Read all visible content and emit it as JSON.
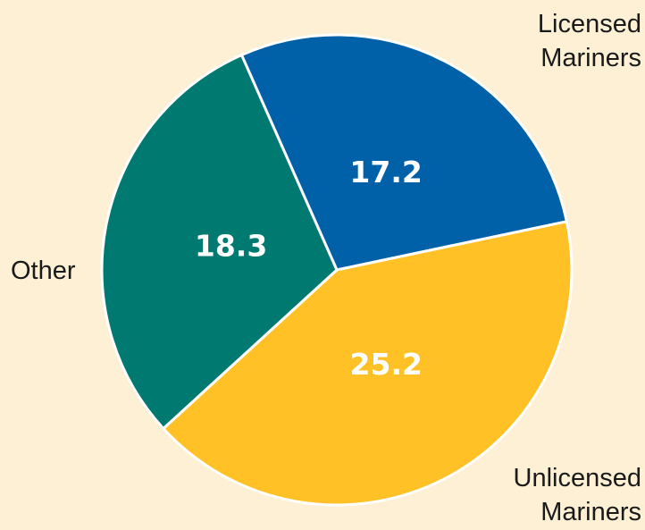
{
  "chart_data": {
    "type": "pie",
    "categories": [
      "Licensed Mariners",
      "Unlicensed Mariners",
      "Other"
    ],
    "values": [
      17.2,
      25.2,
      18.3
    ],
    "colors": [
      "#0060a8",
      "#ffc125",
      "#007a70"
    ]
  }
}
